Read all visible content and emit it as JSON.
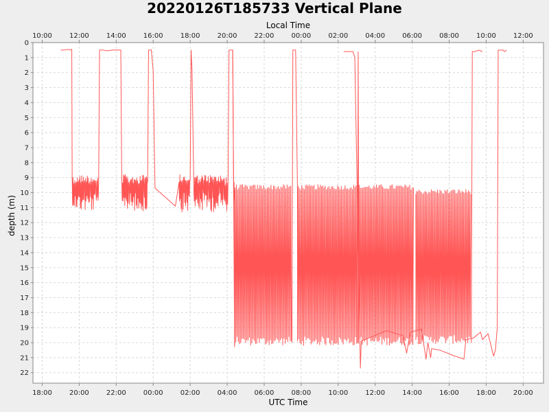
{
  "chart_data": {
    "type": "line",
    "title": "20220126T185733 Vertical Plane",
    "top_axis_label": "Local Time",
    "xlabel": "UTC Time",
    "ylabel": "depth (m)",
    "x_ticks_utc": [
      "18:00",
      "20:00",
      "22:00",
      "00:00",
      "02:00",
      "04:00",
      "06:00",
      "08:00",
      "10:00",
      "12:00",
      "14:00",
      "16:00",
      "18:00",
      "20:00",
      "22:00"
    ],
    "x_ticks_local": [
      "10:00",
      "12:00",
      "14:00",
      "16:00",
      "18:00",
      "20:00",
      "22:00",
      "00:00",
      "02:00",
      "04:00",
      "06:00",
      "08:00",
      "10:00",
      "12:00",
      "14:00"
    ],
    "xlim_hours_utc": [
      17.5,
      45.1
    ],
    "ylim": [
      0,
      22.7
    ],
    "y_ticks": [
      0,
      1,
      2,
      3,
      4,
      5,
      6,
      7,
      8,
      9,
      10,
      11,
      12,
      13,
      14,
      15,
      16,
      17,
      18,
      19,
      20,
      21,
      22
    ],
    "y_inverted": true,
    "grid": true,
    "series": [
      {
        "color": "#ff5555",
        "points": [
          [
            19.0,
            0.5
          ],
          [
            19.2,
            0.5
          ],
          [
            19.4,
            0.45
          ],
          [
            19.5,
            0.5
          ],
          [
            19.6,
            0.45
          ],
          [
            19.62,
            9.0
          ],
          [
            19.9,
            9.0
          ],
          [
            20.3,
            9.2
          ],
          [
            20.6,
            9.5
          ],
          [
            20.9,
            9.6
          ],
          [
            21.05,
            9.5
          ],
          [
            21.1,
            0.5
          ],
          [
            21.3,
            0.5
          ],
          [
            21.5,
            0.55
          ],
          [
            21.8,
            0.5
          ],
          [
            22.1,
            0.5
          ],
          [
            22.25,
            0.5
          ],
          [
            22.3,
            9.0
          ],
          [
            22.7,
            9.5
          ],
          [
            23.2,
            9.4
          ],
          [
            23.5,
            9.5
          ],
          [
            23.7,
            9.3
          ],
          [
            23.75,
            0.5
          ],
          [
            23.9,
            0.5
          ],
          [
            24.0,
            1.9
          ],
          [
            24.1,
            9.7
          ],
          [
            25.2,
            10.9
          ],
          [
            25.4,
            9.3
          ],
          [
            25.6,
            9.3
          ],
          [
            25.8,
            9.5
          ],
          [
            26.0,
            9.2
          ],
          [
            26.05,
            0.5
          ],
          [
            26.1,
            1.8
          ],
          [
            26.2,
            9.9
          ],
          [
            26.5,
            9.4
          ],
          [
            26.7,
            9.6
          ],
          [
            27.0,
            9.5
          ],
          [
            27.2,
            9.3
          ],
          [
            27.6,
            9.4
          ],
          [
            27.8,
            9.1
          ],
          [
            27.9,
            9.5
          ],
          [
            28.05,
            9.1
          ],
          [
            28.1,
            0.5
          ],
          [
            28.3,
            0.5
          ],
          [
            28.35,
            9.8
          ],
          [
            28.4,
            10.0
          ]
        ]
      },
      {
        "color": "#ff5555",
        "points": [
          [
            34.3,
            0.6
          ],
          [
            34.5,
            0.6
          ],
          [
            34.7,
            0.6
          ],
          [
            34.8,
            0.6
          ],
          [
            34.9,
            1.0
          ],
          [
            35.2,
            21.7
          ],
          [
            35.25,
            19.9
          ],
          [
            36.6,
            19.2
          ],
          [
            37.4,
            19.5
          ],
          [
            37.5,
            19.5
          ],
          [
            37.7,
            20.7
          ],
          [
            37.9,
            19.3
          ],
          [
            38.5,
            19.1
          ],
          [
            38.75,
            21.1
          ],
          [
            38.85,
            20.0
          ],
          [
            39.0,
            21.0
          ],
          [
            39.05,
            20.4
          ],
          [
            39.5,
            20.5
          ],
          [
            40.1,
            20.8
          ],
          [
            40.8,
            21.1
          ],
          [
            40.9,
            19.8
          ],
          [
            41.3,
            19.7
          ],
          [
            41.7,
            19.3
          ],
          [
            41.8,
            19.8
          ],
          [
            42.1,
            19.4
          ],
          [
            42.3,
            20.4
          ],
          [
            42.4,
            20.9
          ],
          [
            42.5,
            20.5
          ],
          [
            42.6,
            19.0
          ],
          [
            42.65,
            0.5
          ],
          [
            42.9,
            0.5
          ],
          [
            43.0,
            0.6
          ],
          [
            43.1,
            0.5
          ]
        ]
      }
    ],
    "oscillation_blocks": [
      {
        "x_start": 28.4,
        "x_end": 31.5,
        "depth_top": 9.8,
        "depth_bottom": 20.2
      },
      {
        "x_start": 31.8,
        "x_end": 35.05,
        "depth_top": 9.8,
        "depth_bottom": 20.2
      },
      {
        "x_start": 35.1,
        "x_end": 38.1,
        "depth_top": 9.8,
        "depth_bottom": 20.2
      },
      {
        "x_start": 38.2,
        "x_end": 41.2,
        "depth_top": 10.1,
        "depth_bottom": 20.1
      }
    ]
  }
}
